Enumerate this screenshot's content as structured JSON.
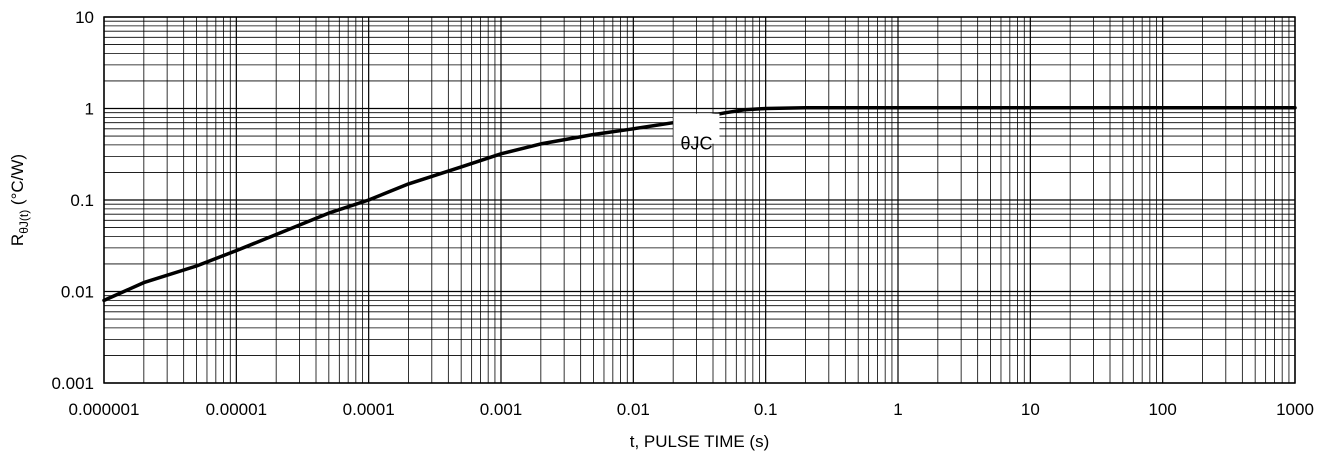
{
  "chart_data": {
    "type": "line",
    "title": "",
    "xlabel": "t, PULSE TIME (s)",
    "ylabel": {
      "main": "R",
      "subscript": "θJ(t)",
      "rest": " (°C/W)"
    },
    "x_scale": "log",
    "y_scale": "log",
    "xlim": [
      1e-06,
      1000
    ],
    "ylim": [
      0.001,
      10
    ],
    "grid": true,
    "legend": "none",
    "x_tick_labels": [
      "0.000001",
      "0.00001",
      "0.0001",
      "0.001",
      "0.01",
      "0.1",
      "1",
      "10",
      "100",
      "1000"
    ],
    "x_tick_values": [
      1e-06,
      1e-05,
      0.0001,
      0.001,
      0.01,
      0.1,
      1,
      10,
      100,
      1000
    ],
    "y_tick_labels": [
      "0.001",
      "0.01",
      "0.1",
      "1",
      "10"
    ],
    "y_tick_values": [
      0.001,
      0.01,
      0.1,
      1,
      10
    ],
    "annotations": [
      {
        "text": "θJC",
        "x": 0.03,
        "y": 0.7
      }
    ],
    "series": [
      {
        "color": "#000000",
        "x": [
          1e-06,
          2e-06,
          5e-06,
          1e-05,
          2e-05,
          5e-05,
          0.0001,
          0.0002,
          0.0005,
          0.001,
          0.002,
          0.005,
          0.01,
          0.02,
          0.05,
          0.07,
          0.1,
          0.2,
          1,
          10,
          100,
          1000
        ],
        "y": [
          0.008,
          0.0125,
          0.019,
          0.028,
          0.042,
          0.072,
          0.1,
          0.15,
          0.23,
          0.32,
          0.41,
          0.52,
          0.6,
          0.7,
          0.9,
          0.97,
          1.0,
          1.02,
          1.02,
          1.02,
          1.02,
          1.02
        ]
      }
    ]
  }
}
